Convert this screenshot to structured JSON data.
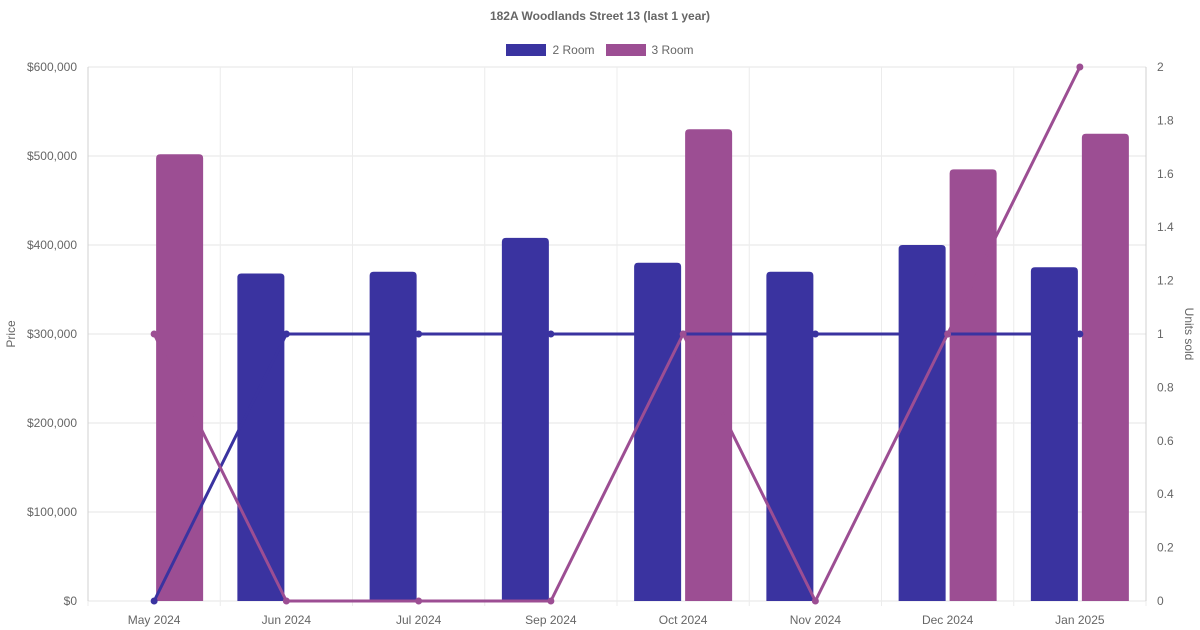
{
  "chart_data": {
    "type": "bar",
    "title": "182A Woodlands Street 13 (last 1 year)",
    "categories": [
      "May 2024",
      "Jun 2024",
      "Jul 2024",
      "Sep 2024",
      "Oct 2024",
      "Nov 2024",
      "Dec 2024",
      "Jan 2025"
    ],
    "y_left": {
      "label": "Price",
      "ticks": [
        "$0",
        "$100,000",
        "$200,000",
        "$300,000",
        "$400,000",
        "$500,000",
        "$600,000"
      ],
      "min": 0,
      "max": 600000
    },
    "y_right": {
      "label": "Units sold",
      "ticks": [
        "0",
        "0.2",
        "0.4",
        "0.6",
        "0.8",
        "1",
        "1.2",
        "1.4",
        "1.6",
        "1.8",
        "2"
      ],
      "min": 0,
      "max": 2
    },
    "grid": true,
    "legend_position": "top-center",
    "series": [
      {
        "name": "2 Room",
        "color": "#3a33a0",
        "price": [
          null,
          368000,
          370000,
          408000,
          380000,
          370000,
          400000,
          375000
        ],
        "units_sold": [
          0,
          1,
          1,
          1,
          1,
          1,
          1,
          1
        ]
      },
      {
        "name": "3 Room",
        "color": "#9c4e93",
        "price": [
          502000,
          null,
          null,
          null,
          530000,
          null,
          485000,
          525000
        ],
        "units_sold": [
          1,
          0,
          0,
          0,
          1,
          0,
          1,
          2
        ]
      }
    ]
  }
}
